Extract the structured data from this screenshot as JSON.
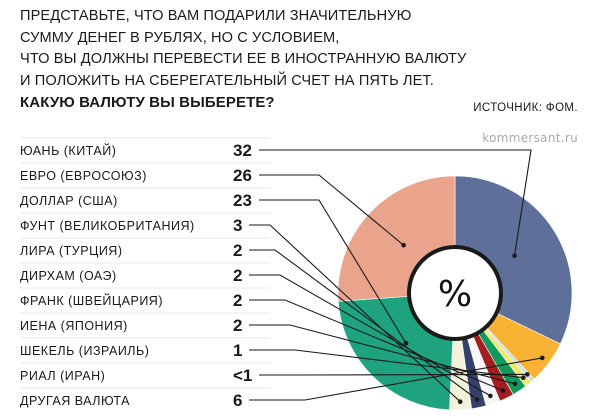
{
  "question": {
    "lines": [
      "ПРЕДСТАВЬТЕ, ЧТО ВАМ ПОДАРИЛИ ЗНАЧИТЕЛЬНУЮ",
      "СУММУ ДЕНЕГ В РУБЛЯХ, НО С УСЛОВИЕМ,",
      "ЧТО ВЫ ДОЛЖНЫ ПЕРЕВЕСТИ ЕЕ В ИНОСТРАННУЮ ВАЛЮТУ",
      "И ПОЛОЖИТЬ НА СБЕРЕГАТЕЛЬНЫЙ СЧЕТ НА ПЯТЬ ЛЕТ."
    ],
    "bold_line": "КАКУЮ ВАЛЮТУ ВЫ ВЫБЕРЕТЕ?"
  },
  "source": "ИСТОЧНИК: ФОМ.",
  "watermark": "kommersant.ru",
  "center_symbol": "%",
  "colors": {
    "center_ring": "#1a1a1a",
    "leader_lines": "#1a1a1a",
    "separators": "#e9e9e9"
  },
  "chart_data": {
    "type": "pie",
    "style": "donut",
    "title": "",
    "categories": [
      "ЮАНЬ (КИТАЙ)",
      "ЕВРО (ЕВРОСОЮЗ)",
      "ДОЛЛАР (США)",
      "ФУНТ (ВЕЛИКОБРИТАНИЯ)",
      "ЛИРА (ТУРЦИЯ)",
      "ДИРХАМ (ОАЭ)",
      "ФРАНК (ШВЕЙЦАРИЯ)",
      "ИЕНА (ЯПОНИЯ)",
      "ШЕКЕЛЬ (ИЗРАИЛЬ)",
      "РИАЛ (ИРАН)",
      "ДРУГАЯ ВАЛЮТА"
    ],
    "value_labels": [
      "32",
      "26",
      "23",
      "3",
      "2",
      "2",
      "2",
      "2",
      "1",
      "<1",
      "6"
    ],
    "values": [
      32,
      26,
      23,
      3,
      2,
      2,
      2,
      2,
      1,
      0.5,
      6
    ],
    "slice_colors": [
      "#5e7099",
      "#e9a48b",
      "#1ea37e",
      "#f2f2da",
      "#35406b",
      "#f7f7f7",
      "#a31d21",
      "#119b5b",
      "#f0ea6e",
      "#c5dcea",
      "#f9b233"
    ]
  }
}
